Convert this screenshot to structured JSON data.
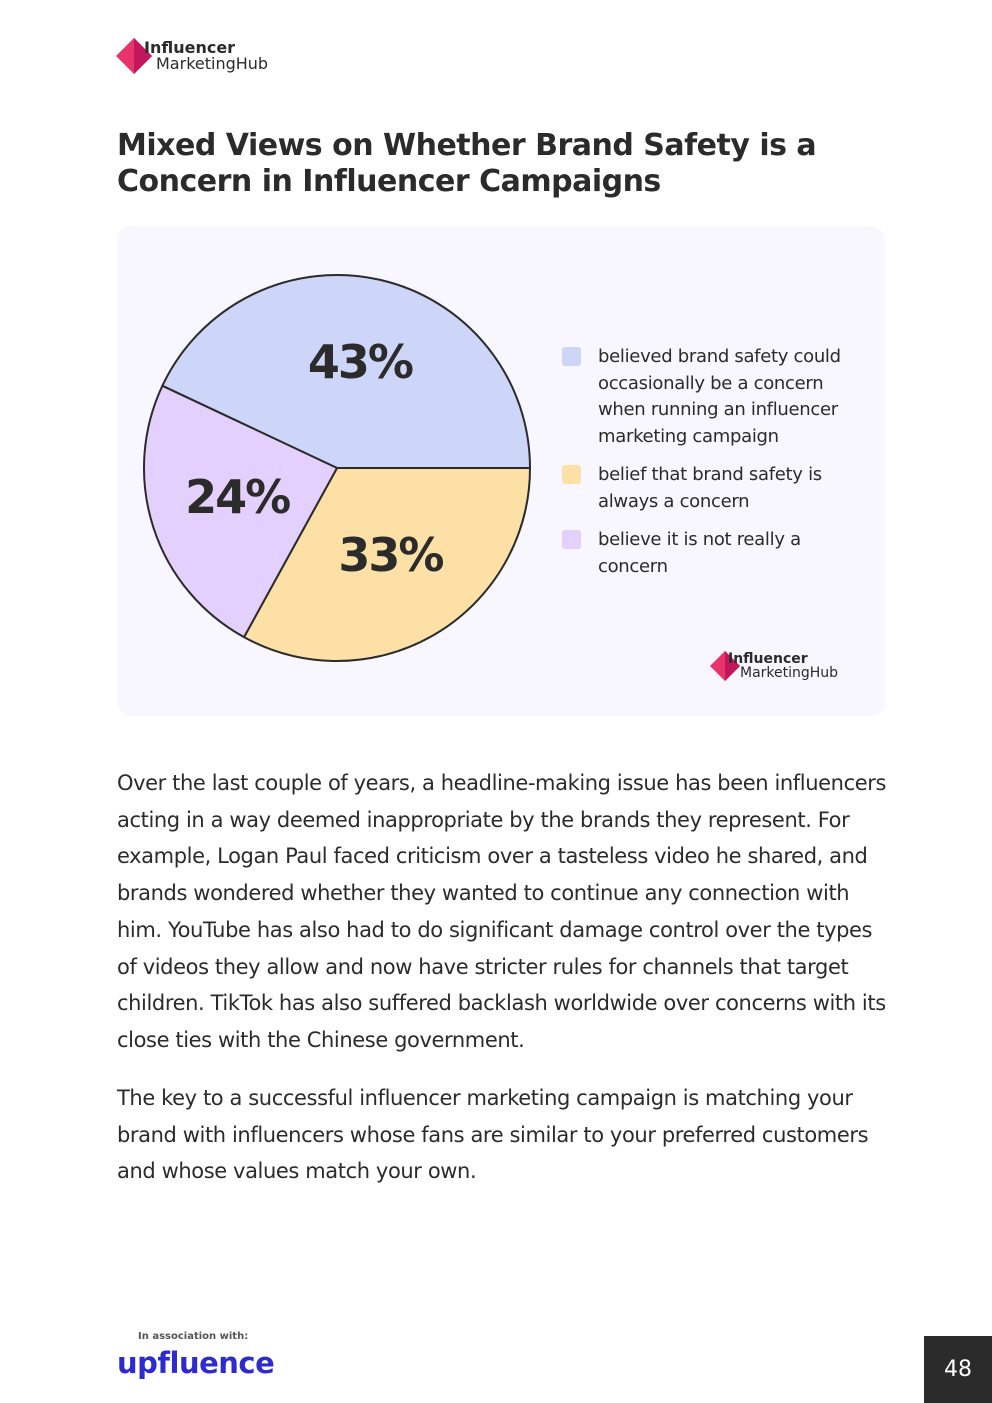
{
  "header": {
    "logo_line1": "Influencer",
    "logo_line2": "MarketingHub"
  },
  "title": "Mixed Views on Whether Brand Safety is a Concern in Influencer Campaigns",
  "chart_data": {
    "type": "pie",
    "categories": [
      "believed brand safety could occasionally be a concern when running an influencer marketing campaign",
      "belief that brand safety is always a concern",
      "believe it is not really a concern"
    ],
    "values": [
      43,
      33,
      24
    ],
    "value_labels": [
      "43%",
      "33%",
      "24%"
    ],
    "colors": [
      "#cdd5f8",
      "#fde0a6",
      "#e4d0fc"
    ]
  },
  "chart_logo": {
    "line1": "Influencer",
    "line2": "MarketingHub"
  },
  "paragraphs": [
    "Over the last couple of years, a headline-making issue has been influencers acting in a way deemed inappropriate by the brands they represent. For example, Logan Paul faced criticism over a tasteless video he shared, and brands wondered whether they wanted to continue any connection with him. YouTube has also had to do significant damage control over the types of videos they allow and now have stricter rules for channels that target children. TikTok has also suffered backlash worldwide over concerns with its close ties with the Chinese government.",
    "The key to a successful influencer marketing campaign is matching your brand with influencers whose fans are similar to your preferred customers and whose values match your own."
  ],
  "footer": {
    "association": "In association with:",
    "partner": "upfluence",
    "page_number": "48"
  }
}
